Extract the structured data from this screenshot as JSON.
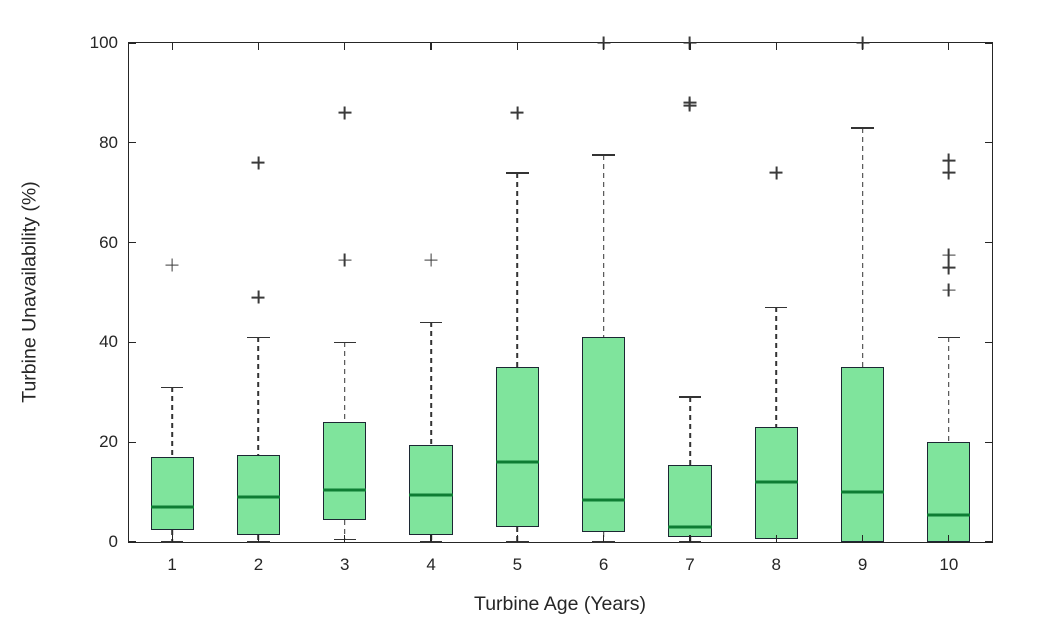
{
  "figure": {
    "background": "#ffffff"
  },
  "chart_data": {
    "type": "boxplot",
    "title": "",
    "xlabel": "Turbine Age (Years)",
    "ylabel": "Turbine Unavailability (%)",
    "ylim": [
      0,
      100
    ],
    "yticks": [
      0,
      20,
      40,
      60,
      80,
      100
    ],
    "categories": [
      "1",
      "2",
      "3",
      "4",
      "5",
      "6",
      "7",
      "8",
      "9",
      "10"
    ],
    "grid": false,
    "legend": "none",
    "boxes": [
      {
        "category": "1",
        "whisker_low": 0,
        "q1": 2.5,
        "median": 7,
        "q3": 17,
        "whisker_high": 31,
        "outliers": [
          55.5
        ]
      },
      {
        "category": "2",
        "whisker_low": 0,
        "q1": 1.5,
        "median": 9,
        "q3": 17.5,
        "whisker_high": 41,
        "outliers": [
          76,
          49
        ]
      },
      {
        "category": "3",
        "whisker_low": 0.5,
        "q1": 4.5,
        "median": 10.5,
        "q3": 24,
        "whisker_high": 40,
        "outliers": [
          86,
          56.5
        ]
      },
      {
        "category": "4",
        "whisker_low": 0,
        "q1": 1.5,
        "median": 9.5,
        "q3": 19.5,
        "whisker_high": 44,
        "outliers": [
          56.5
        ]
      },
      {
        "category": "5",
        "whisker_low": 0,
        "q1": 3,
        "median": 16,
        "q3": 35,
        "whisker_high": 74,
        "outliers": [
          86
        ]
      },
      {
        "category": "6",
        "whisker_low": 0,
        "q1": 2,
        "median": 8.5,
        "q3": 41,
        "whisker_high": 77.5,
        "outliers": [
          100
        ]
      },
      {
        "category": "7",
        "whisker_low": 0,
        "q1": 1,
        "median": 3,
        "q3": 15.5,
        "whisker_high": 29,
        "outliers": [
          100,
          88,
          87.5
        ]
      },
      {
        "category": "8",
        "whisker_low": 0.5,
        "q1": 0.5,
        "median": 12,
        "q3": 23,
        "whisker_high": 47,
        "outliers": [
          74
        ]
      },
      {
        "category": "9",
        "whisker_low": 0,
        "q1": 0,
        "median": 10,
        "q3": 35,
        "whisker_high": 83,
        "outliers": [
          100
        ]
      },
      {
        "category": "10",
        "whisker_low": 0,
        "q1": 0,
        "median": 5.5,
        "q3": 20,
        "whisker_high": 41,
        "outliers": [
          76.5,
          74,
          57.5,
          55,
          50.5
        ]
      }
    ],
    "colors": {
      "box_fill": "#7fe49c",
      "box_edge": "#1c2733",
      "median": "#0e7d33",
      "whisker": "#333333",
      "outlier": "#3a3a3a",
      "axis": "#262626",
      "text": "#262626"
    }
  }
}
